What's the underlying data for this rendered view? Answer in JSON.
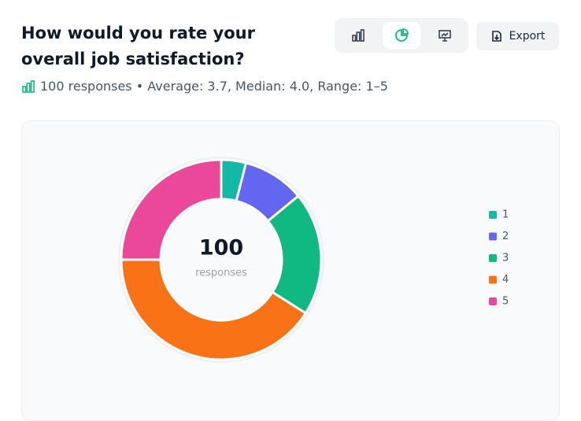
{
  "header": {
    "title": "How would you rate your overall job satisfaction?",
    "summary": "100 responses • Average: 3.7, Median: 4.0, Range: 1–5",
    "export": "Export"
  },
  "chart_data": {
    "type": "donut",
    "categories": [
      "1",
      "2",
      "3",
      "4",
      "5"
    ],
    "values": [
      4,
      10,
      20,
      41,
      25
    ],
    "colors": [
      "#14b8a6",
      "#6366f1",
      "#10b981",
      "#f97316",
      "#ec4899"
    ],
    "total": 100,
    "center_label": "responses",
    "legend": "right"
  }
}
